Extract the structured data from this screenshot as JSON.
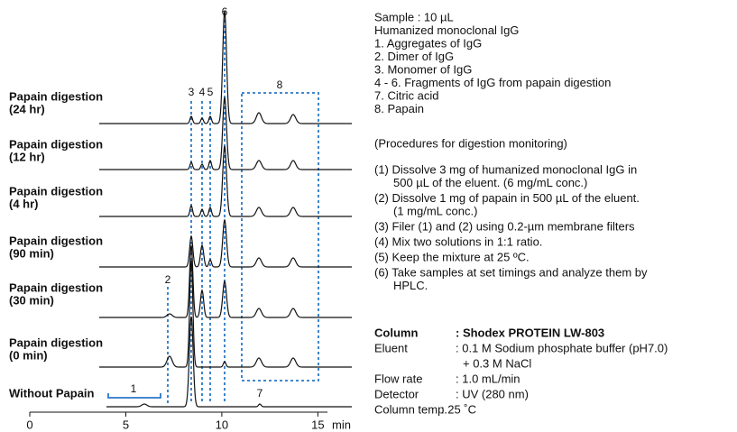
{
  "chart_data": {
    "type": "chromatogram",
    "x_unit": "min",
    "xlim": [
      0,
      15.5
    ],
    "xticks": [
      0,
      5,
      10,
      15
    ],
    "traces": [
      {
        "name": "Papain digestion",
        "condition": "(24 hr)"
      },
      {
        "name": "Papain digestion",
        "condition": "(12 hr)"
      },
      {
        "name": "Papain digestion",
        "condition": "(4 hr)"
      },
      {
        "name": "Papain digestion",
        "condition": "(90 min)"
      },
      {
        "name": "Papain digestion",
        "condition": "(30 min)"
      },
      {
        "name": "Papain digestion",
        "condition": "(0 min)"
      },
      {
        "name": "Without Papain"
      }
    ],
    "peak_labels": [
      "1",
      "2",
      "3",
      "4",
      "5",
      "6",
      "7",
      "8"
    ]
  },
  "notes": {
    "sample": [
      "Sample : 10 µL",
      "Humanized monoclonal IgG",
      "1. Aggregates of IgG",
      "2. Dimer of IgG",
      "3. Monomer of IgG",
      "4 - 6. Fragments of IgG from papain digestion",
      "7. Citric acid",
      "8. Papain"
    ],
    "procedures_title": "(Procedures for digestion monitoring)",
    "procedures": [
      [
        "(1) Dissolve 3 mg of humanized monoclonal IgG in",
        "500 µL of the eluent. (6 mg/mL conc.)"
      ],
      [
        "(2) Dissolve 1 mg of papain in 500 µL of the eluent.",
        "(1 mg/mL conc.)"
      ],
      [
        "(3) Filer (1) and (2) using 0.2-µm membrane filters"
      ],
      [
        "(4) Mix two solutions in 1:1 ratio."
      ],
      [
        "(5) Keep the mixture at 25 ºC."
      ],
      [
        "(6) Take samples at set timings and analyze them by",
        "HPLC."
      ]
    ],
    "conditions": [
      {
        "key": "Column",
        "lines": [
          ": Shodex PROTEIN LW-803"
        ]
      },
      {
        "key": "Eluent",
        "lines": [
          ": 0.1 M Sodium phosphate buffer (pH7.0)",
          "+ 0.3 M NaCl"
        ]
      },
      {
        "key": "Flow rate",
        "lines": [
          ": 1.0 mL/min"
        ]
      },
      {
        "key": "Detector",
        "lines": [
          ": UV (280 nm)"
        ]
      },
      {
        "key": "Column temp.",
        "lines": [
          ": 25 ˚C"
        ]
      }
    ]
  }
}
